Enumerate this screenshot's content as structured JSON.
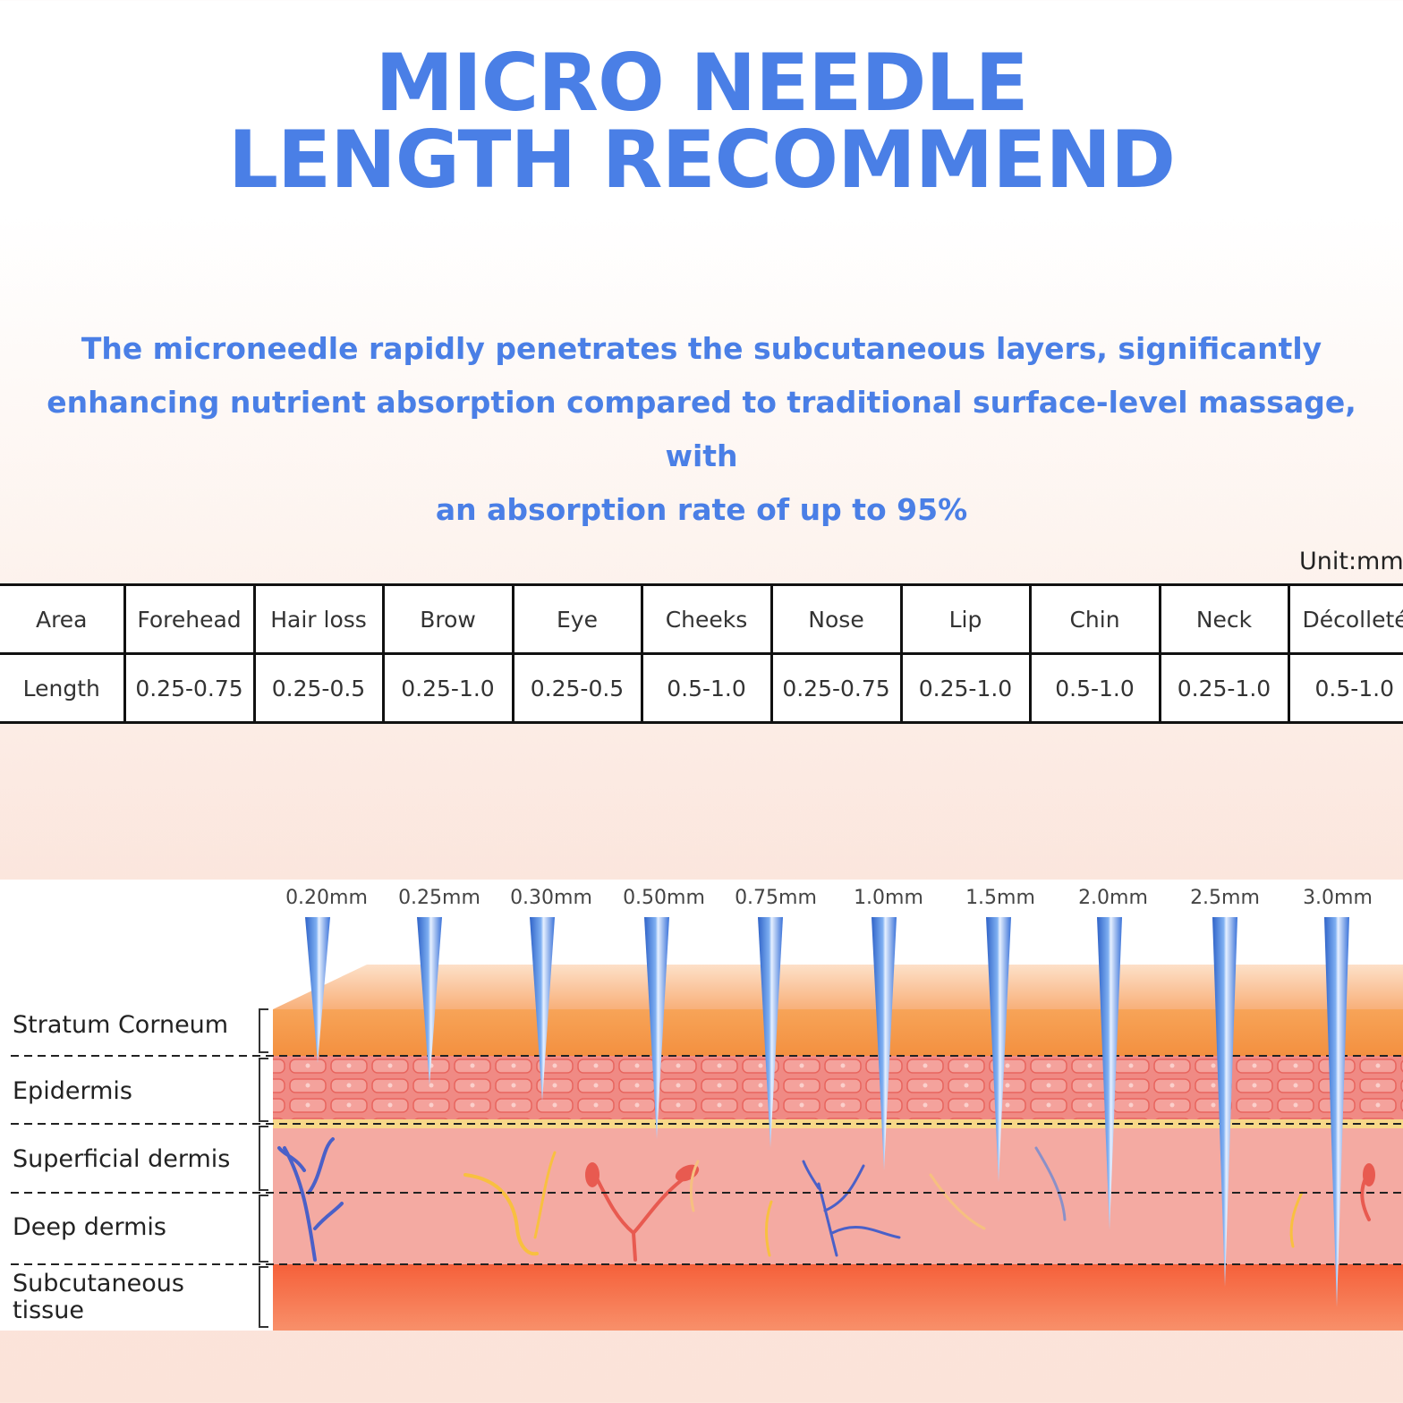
{
  "title": {
    "line1": "MICRO NEEDLE",
    "line2": "LENGTH RECOMMEND"
  },
  "subtitle": {
    "line1": "The microneedle rapidly penetrates the subcutaneous layers, significantly",
    "line2": "enhancing nutrient absorption compared to traditional surface-level massage, with",
    "line3": "an absorption rate of up to 95%"
  },
  "table": {
    "unit": "Unit:mm",
    "header": [
      "Area",
      "Forehead",
      "Hair loss",
      "Brow",
      "Eye",
      "Cheeks",
      "Nose",
      "Lip",
      "Chin",
      "Neck",
      "Décolleté"
    ],
    "row": [
      "Length",
      "0.25-0.75",
      "0.25-0.5",
      "0.25-1.0",
      "0.25-0.5",
      "0.5-1.0",
      "0.25-0.75",
      "0.25-1.0",
      "0.5-1.0",
      "0.25-1.0",
      "0.5-1.0"
    ]
  },
  "diagram": {
    "layers": [
      "Stratum Corneum",
      "Epidermis",
      "Superficial dermis",
      "Deep dermis",
      "Subcutaneous tissue"
    ],
    "needles": [
      "0.20mm",
      "0.25mm",
      "0.30mm",
      "0.50mm",
      "0.75mm",
      "1.0mm",
      "1.5mm",
      "2.0mm",
      "2.5mm",
      "3.0mm"
    ]
  },
  "colors": {
    "accent": "#4a7fe6",
    "stratum": "#f5a050",
    "epidermis": "#f08c84",
    "dermis": "#f4aca4",
    "subcutaneous": "#f5724a",
    "needle": "#5b8fe0"
  }
}
